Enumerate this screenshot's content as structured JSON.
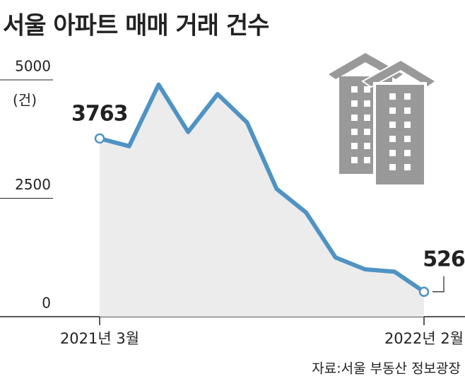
{
  "chart_data": {
    "type": "line",
    "title": "서울 아파트 매매 거래 건수",
    "y_unit": "(건)",
    "source": "자료:서울 부동산 정보광장",
    "categories": [
      "2021년 3월",
      null,
      null,
      null,
      null,
      null,
      null,
      null,
      null,
      null,
      null,
      "2022년 2월"
    ],
    "series": [
      {
        "name": null,
        "color": "#4f93c4",
        "values": [
          3763,
          3600,
          4900,
          3900,
          4700,
          4100,
          2700,
          2200,
          1250,
          1000,
          950,
          526
        ]
      }
    ],
    "labeled_points": [
      0,
      11
    ],
    "ylim": [
      0,
      5500
    ],
    "yticks": [
      0,
      2500,
      5000
    ],
    "area_fill": "#ececec"
  }
}
